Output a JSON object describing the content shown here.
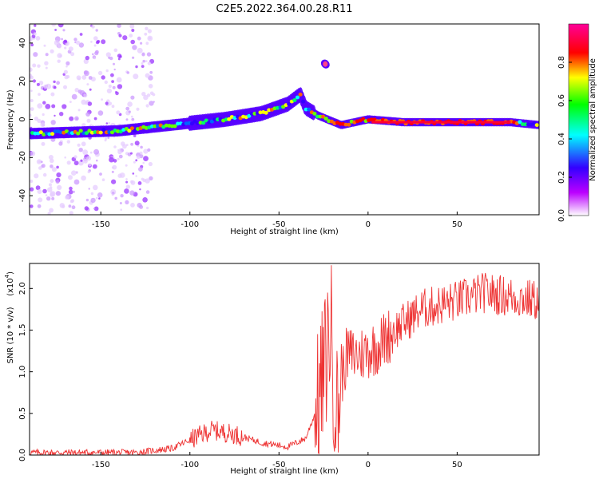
{
  "title": "C2E5.2022.364.00.28.R11",
  "chart_data": [
    {
      "type": "heatmap",
      "xlabel": "Height of straight line (km)",
      "ylabel": "Frequency (Hz)",
      "xlim": [
        -190,
        96
      ],
      "ylim": [
        -50,
        50
      ],
      "xticks": [
        -150,
        -100,
        -50,
        0,
        50
      ],
      "yticks": [
        40,
        20,
        0,
        -20,
        -40
      ],
      "colorbar": {
        "label": "Normalized spectral amplitude",
        "range": [
          0,
          1
        ],
        "ticks": [
          "0.0",
          "0.2",
          "0.4",
          "0.6",
          "0.8"
        ],
        "colors": [
          "#ffffff",
          "#bb00ff",
          "#3300ff",
          "#00ffff",
          "#00ff00",
          "#ffff00",
          "#ff0000",
          "#ff0099"
        ]
      },
      "ridge": [
        {
          "x": -190,
          "f": -7.5
        },
        {
          "x": -140,
          "f": -6
        },
        {
          "x": -100,
          "f": -2
        },
        {
          "x": -80,
          "f": 0
        },
        {
          "x": -60,
          "f": 3
        },
        {
          "x": -45,
          "f": 8
        },
        {
          "x": -38,
          "f": 13
        },
        {
          "x": -35,
          "f": 6
        },
        {
          "x": -28,
          "f": 2
        },
        {
          "x": -15,
          "f": -3
        },
        {
          "x": 0,
          "f": 0
        },
        {
          "x": 20,
          "f": -1.5
        },
        {
          "x": 80,
          "f": -1.5
        },
        {
          "x": 96,
          "f": -3
        }
      ],
      "isolated_feature": {
        "x": -24,
        "f": 29
      }
    },
    {
      "type": "line",
      "xlabel": "Height of straight line (km)",
      "ylabel": "SNR (10 * v/v)",
      "y_multiplier": "(x10",
      "y_multiplier_exp": "4",
      "xlim": [
        -190,
        96
      ],
      "ylim": [
        0,
        2.3
      ],
      "xticks": [
        -150,
        -100,
        -50,
        0,
        50
      ],
      "yticks": [
        "0.0",
        "0.5",
        "1.0",
        "1.5",
        "2.0"
      ],
      "color": "#ee3333",
      "envelope": [
        {
          "x": -190,
          "y": 0.03
        },
        {
          "x": -130,
          "y": 0.03
        },
        {
          "x": -110,
          "y": 0.08
        },
        {
          "x": -100,
          "y": 0.18
        },
        {
          "x": -88,
          "y": 0.3
        },
        {
          "x": -75,
          "y": 0.25
        },
        {
          "x": -60,
          "y": 0.15
        },
        {
          "x": -45,
          "y": 0.1
        },
        {
          "x": -35,
          "y": 0.2
        },
        {
          "x": -28,
          "y": 0.6
        },
        {
          "x": -24,
          "y": 1.1
        },
        {
          "x": -21,
          "y": 1.6
        },
        {
          "x": -18,
          "y": 0.4
        },
        {
          "x": -15,
          "y": 0.9
        },
        {
          "x": -12,
          "y": 1.2
        },
        {
          "x": -5,
          "y": 1.2
        },
        {
          "x": 5,
          "y": 1.3
        },
        {
          "x": 15,
          "y": 1.5
        },
        {
          "x": 30,
          "y": 1.75
        },
        {
          "x": 50,
          "y": 1.85
        },
        {
          "x": 65,
          "y": 1.95
        },
        {
          "x": 80,
          "y": 1.9
        },
        {
          "x": 96,
          "y": 1.85
        }
      ]
    }
  ]
}
